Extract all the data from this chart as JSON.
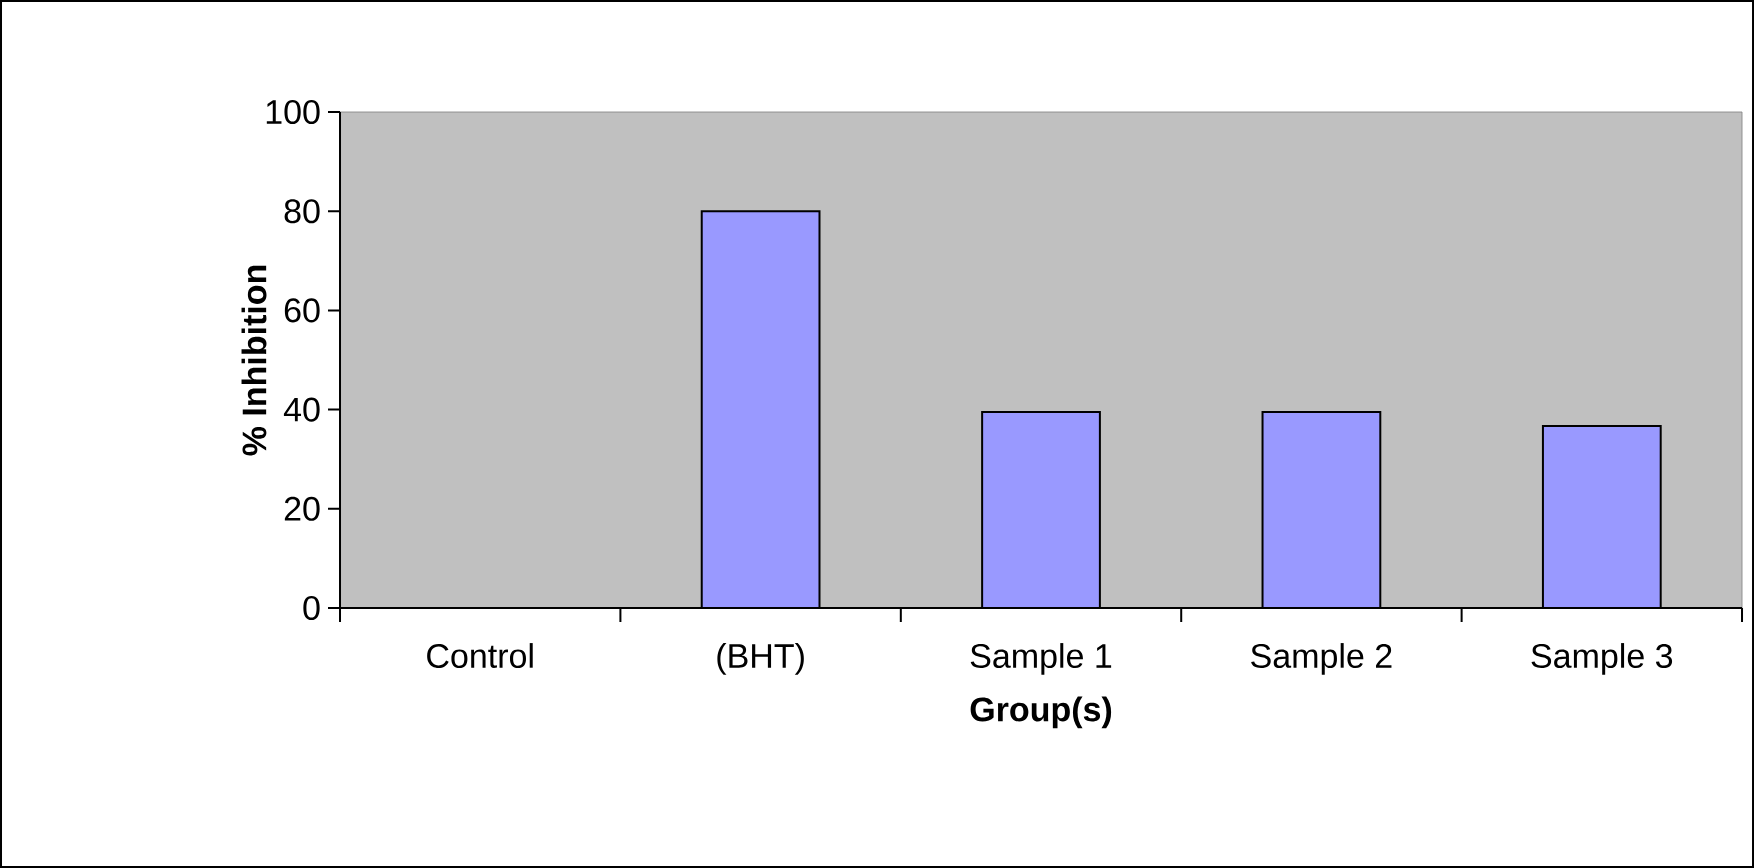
{
  "chart_data": {
    "type": "bar",
    "xlabel": "Group(s)",
    "ylabel": "% Inhibition",
    "categories": [
      "Control",
      "(BHT)",
      "Sample 1",
      "Sample 2",
      "Sample 3"
    ],
    "values": [
      0,
      80,
      39.5,
      39.5,
      36.7
    ],
    "color": "#9999ff",
    "ylim": [
      0,
      100
    ],
    "yticks": [
      0,
      20,
      40,
      60,
      80,
      100
    ]
  }
}
